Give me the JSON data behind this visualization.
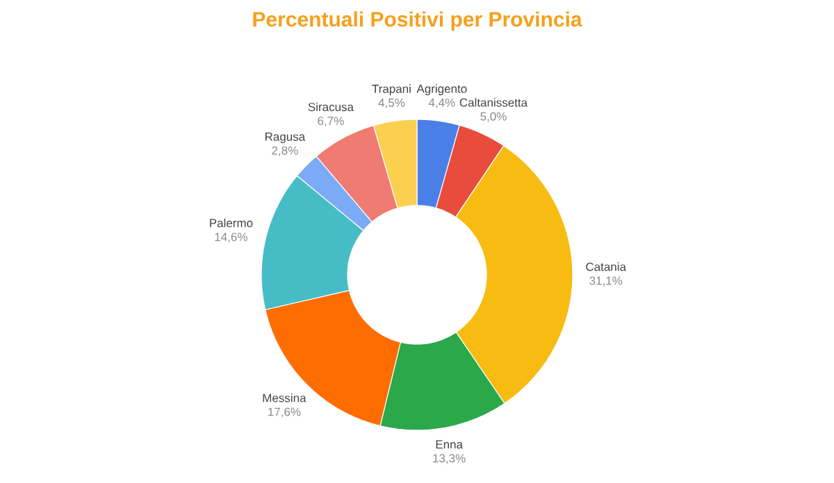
{
  "chart_data": {
    "type": "donut",
    "title": "Percentuali Positivi per Provincia",
    "categories": [
      "Agrigento",
      "Caltanissetta",
      "Catania",
      "Enna",
      "Messina",
      "Palermo",
      "Ragusa",
      "Siracusa",
      "Trapani"
    ],
    "values": [
      4.4,
      5.0,
      31.1,
      13.3,
      17.6,
      14.6,
      2.8,
      6.7,
      4.5
    ],
    "value_labels": [
      "4,4%",
      "5,0%",
      "31,1%",
      "13,3%",
      "17,6%",
      "14,6%",
      "2,8%",
      "6,7%",
      "4,5%"
    ],
    "colors": [
      "#4a7fe8",
      "#e84c3d",
      "#f7bb12",
      "#2aa84a",
      "#ff6d01",
      "#46bdc6",
      "#7baaf7",
      "#f07b72",
      "#fcd04f"
    ]
  }
}
